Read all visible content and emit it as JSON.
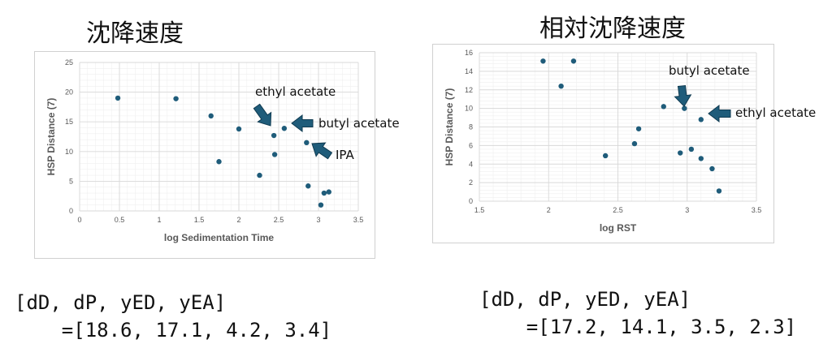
{
  "headings": {
    "left": "沈降速度",
    "right": "相対沈降速度"
  },
  "formulas": {
    "left": {
      "line1": "[dD, dP, yED, yEA]",
      "line2": "=[18.6, 17.1, 4.2, 3.4]"
    },
    "right": {
      "line1": "[dD, dP, yED, yEA]",
      "line2": "=[17.2, 14.1, 3.5, 2.3]"
    }
  },
  "colors": {
    "marker": "#1f5c7a",
    "arrow": "#1f5c7a",
    "grid_major": "#d9d9d9",
    "grid_minor": "#efefef"
  },
  "chart_data": [
    {
      "type": "scatter",
      "title": "",
      "xlabel": "log Sedimentation Time",
      "ylabel": "HSP Distance (7)",
      "xlim": [
        0,
        3.5
      ],
      "ylim": [
        0,
        25
      ],
      "xticks": [
        "0",
        "0.5",
        "1",
        "1.5",
        "2",
        "2.5",
        "3",
        "3.5"
      ],
      "yticks": [
        "0",
        "5",
        "10",
        "15",
        "20",
        "25"
      ],
      "grid": true,
      "points": [
        {
          "x": 0.48,
          "y": 19.0
        },
        {
          "x": 1.21,
          "y": 18.9
        },
        {
          "x": 1.65,
          "y": 16.0
        },
        {
          "x": 2.0,
          "y": 13.8
        },
        {
          "x": 1.75,
          "y": 8.3
        },
        {
          "x": 2.26,
          "y": 6.0
        },
        {
          "x": 2.44,
          "y": 12.7
        },
        {
          "x": 2.57,
          "y": 13.9
        },
        {
          "x": 2.45,
          "y": 9.5
        },
        {
          "x": 2.85,
          "y": 11.5
        },
        {
          "x": 2.87,
          "y": 4.2
        },
        {
          "x": 3.03,
          "y": 1.0
        },
        {
          "x": 3.07,
          "y": 3.0
        },
        {
          "x": 3.13,
          "y": 3.2
        }
      ],
      "annotations": [
        {
          "text": "ethyl acetate",
          "x": 2.44,
          "y": 12.7
        },
        {
          "text": "butyl acetate",
          "x": 2.57,
          "y": 13.9
        },
        {
          "text": "IPA",
          "x": 2.85,
          "y": 11.5
        }
      ]
    },
    {
      "type": "scatter",
      "title": "",
      "xlabel": "log RST",
      "ylabel": "HSP Distance (7)",
      "xlim": [
        1.5,
        3.5
      ],
      "ylim": [
        0,
        16
      ],
      "xticks": [
        "1.5",
        "2",
        "2.5",
        "3",
        "3.5"
      ],
      "yticks": [
        "0",
        "2",
        "4",
        "6",
        "8",
        "10",
        "12",
        "14",
        "16"
      ],
      "grid": true,
      "points": [
        {
          "x": 1.96,
          "y": 15.1
        },
        {
          "x": 2.18,
          "y": 15.1
        },
        {
          "x": 2.09,
          "y": 12.4
        },
        {
          "x": 2.41,
          "y": 4.9
        },
        {
          "x": 2.62,
          "y": 6.2
        },
        {
          "x": 2.65,
          "y": 7.8
        },
        {
          "x": 2.83,
          "y": 10.2
        },
        {
          "x": 2.98,
          "y": 10.0
        },
        {
          "x": 2.95,
          "y": 5.2
        },
        {
          "x": 3.03,
          "y": 5.6
        },
        {
          "x": 3.1,
          "y": 8.8
        },
        {
          "x": 3.1,
          "y": 4.6
        },
        {
          "x": 3.18,
          "y": 3.5
        },
        {
          "x": 3.23,
          "y": 1.1
        }
      ],
      "annotations": [
        {
          "text": "butyl acetate",
          "x": 2.98,
          "y": 10.0
        },
        {
          "text": "ethyl acetate",
          "x": 3.1,
          "y": 8.8
        }
      ]
    }
  ]
}
